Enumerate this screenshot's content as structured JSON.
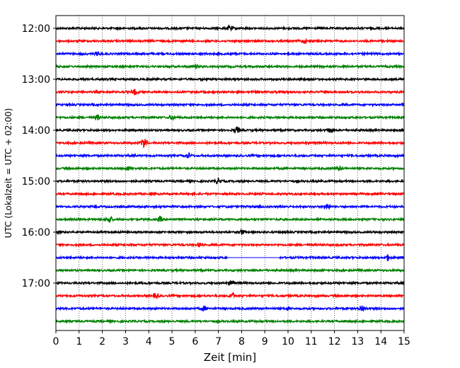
{
  "chart_data": {
    "type": "line",
    "xlabel": "Zeit  [min]",
    "ylabel": "UTC (Lokalzeit = UTC + 02:00)",
    "xlim": [
      0,
      15
    ],
    "x_ticks": [
      0,
      1,
      2,
      3,
      4,
      5,
      6,
      7,
      8,
      9,
      10,
      11,
      12,
      13,
      14,
      15
    ],
    "y_ticks": [
      "12:00",
      "13:00",
      "14:00",
      "15:00",
      "16:00",
      "17:00"
    ],
    "grid": "vertical-dotted",
    "trace_interval_min": 15,
    "trace_colors": [
      "#000000",
      "#ff0000",
      "#0000ff",
      "#008000"
    ],
    "traces": [
      {
        "start": "12:00",
        "color": "#000000"
      },
      {
        "start": "12:15",
        "color": "#ff0000"
      },
      {
        "start": "12:30",
        "color": "#0000ff"
      },
      {
        "start": "12:45",
        "color": "#008000"
      },
      {
        "start": "13:00",
        "color": "#000000"
      },
      {
        "start": "13:15",
        "color": "#ff0000"
      },
      {
        "start": "13:30",
        "color": "#0000ff"
      },
      {
        "start": "13:45",
        "color": "#008000"
      },
      {
        "start": "14:00",
        "color": "#000000"
      },
      {
        "start": "14:15",
        "color": "#ff0000"
      },
      {
        "start": "14:30",
        "color": "#0000ff"
      },
      {
        "start": "14:45",
        "color": "#008000"
      },
      {
        "start": "15:00",
        "color": "#000000"
      },
      {
        "start": "15:15",
        "color": "#ff0000"
      },
      {
        "start": "15:30",
        "color": "#0000ff"
      },
      {
        "start": "15:45",
        "color": "#008000"
      },
      {
        "start": "16:00",
        "color": "#000000"
      },
      {
        "start": "16:15",
        "color": "#ff0000"
      },
      {
        "start": "16:30",
        "color": "#0000ff",
        "gap_min": [
          7.4,
          9.6
        ]
      },
      {
        "start": "16:45",
        "color": "#008000"
      },
      {
        "start": "17:00",
        "color": "#000000"
      },
      {
        "start": "17:15",
        "color": "#ff0000"
      },
      {
        "start": "17:30",
        "color": "#0000ff"
      },
      {
        "start": "17:45",
        "color": "#008000"
      }
    ],
    "events": [
      {
        "trace": "12:00",
        "x": 7.5,
        "amp": 0.7
      },
      {
        "trace": "12:15",
        "x": 10.7,
        "amp": 0.6
      },
      {
        "trace": "12:30",
        "x": 1.8,
        "amp": 0.5
      },
      {
        "trace": "12:45",
        "x": 6.0,
        "amp": 0.6
      },
      {
        "trace": "13:15",
        "x": 3.4,
        "amp": 0.7
      },
      {
        "trace": "13:30",
        "x": 15.0,
        "amp": 0.6
      },
      {
        "trace": "13:45",
        "x": 1.8,
        "amp": 0.7
      },
      {
        "trace": "13:45",
        "x": 5.0,
        "amp": 0.6
      },
      {
        "trace": "14:00",
        "x": 7.8,
        "amp": 0.9
      },
      {
        "trace": "14:00",
        "x": 11.8,
        "amp": 0.7
      },
      {
        "trace": "14:15",
        "x": 3.8,
        "amp": 1.6
      },
      {
        "trace": "14:30",
        "x": 5.7,
        "amp": 0.7
      },
      {
        "trace": "14:45",
        "x": 3.1,
        "amp": 0.6
      },
      {
        "trace": "14:45",
        "x": 12.2,
        "amp": 0.6
      },
      {
        "trace": "15:00",
        "x": 7.0,
        "amp": 0.8
      },
      {
        "trace": "15:30",
        "x": 11.7,
        "amp": 0.9
      },
      {
        "trace": "15:45",
        "x": 2.3,
        "amp": 1.0
      },
      {
        "trace": "15:45",
        "x": 4.5,
        "amp": 0.7
      },
      {
        "trace": "16:00",
        "x": 8.0,
        "amp": 0.6
      },
      {
        "trace": "16:15",
        "x": 6.2,
        "amp": 0.6
      },
      {
        "trace": "16:30",
        "x": 14.3,
        "amp": 0.8
      },
      {
        "trace": "17:00",
        "x": 7.6,
        "amp": 0.7
      },
      {
        "trace": "17:15",
        "x": 4.3,
        "amp": 0.8
      },
      {
        "trace": "17:15",
        "x": 7.6,
        "amp": 0.8
      },
      {
        "trace": "17:30",
        "x": 6.4,
        "amp": 0.6
      },
      {
        "trace": "17:30",
        "x": 13.2,
        "amp": 1.0
      },
      {
        "trace": "17:30",
        "x": 10.0,
        "amp": 0.5
      }
    ]
  }
}
